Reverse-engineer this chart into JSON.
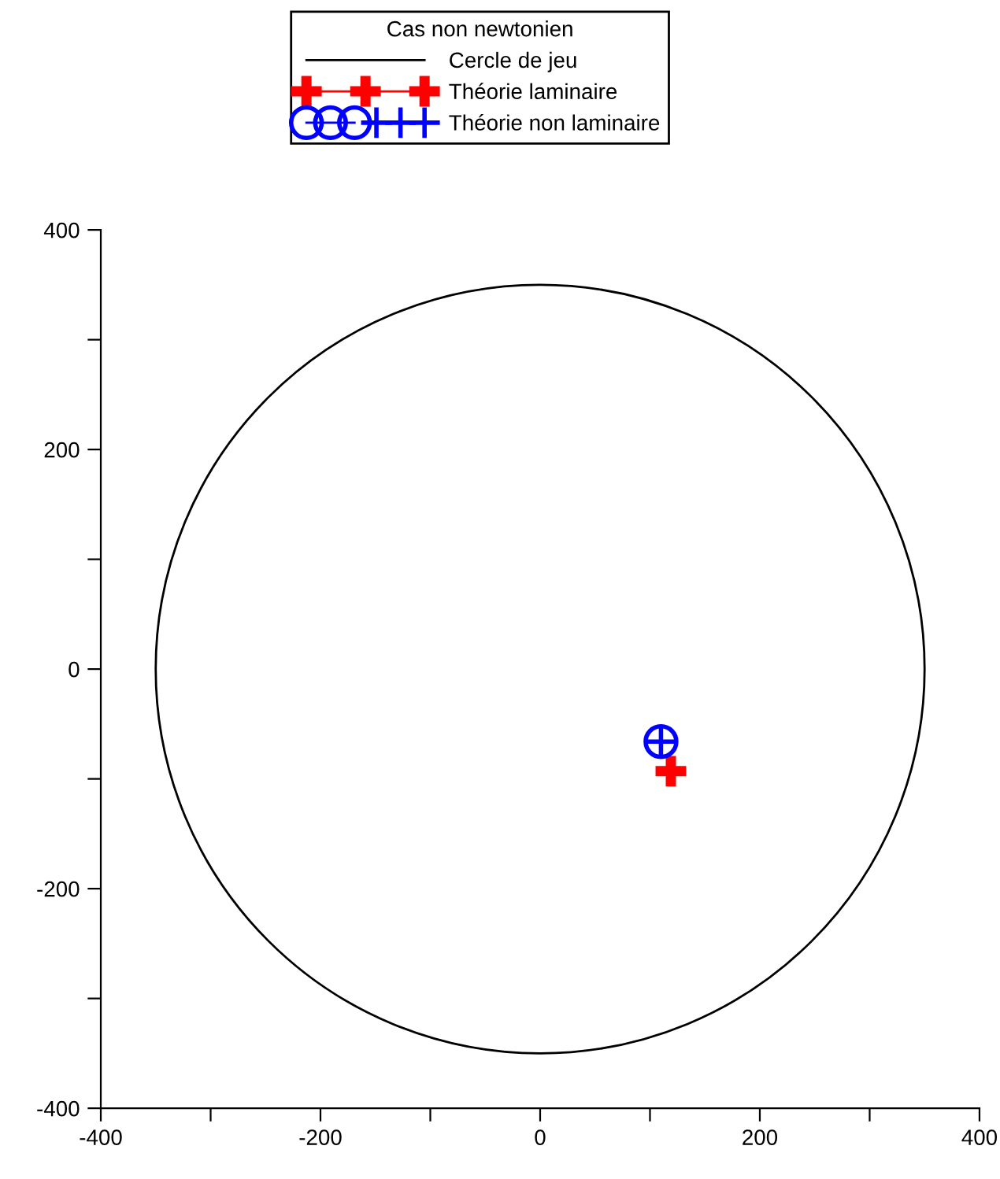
{
  "chart_data": {
    "type": "line",
    "legend_title": "Cas non newtonien",
    "legend": "top",
    "grid": false,
    "xlim": [
      -400,
      400
    ],
    "ylim": [
      -400,
      400
    ],
    "xticks": [
      -400,
      {
        "value": -300,
        "label": null
      },
      -200,
      {
        "value": -100,
        "label": null
      },
      0,
      {
        "value": 100,
        "label": null
      },
      200,
      {
        "value": 300,
        "label": null
      },
      400
    ],
    "yticks": [
      -400,
      {
        "value": -300,
        "label": null
      },
      -200,
      {
        "value": -100,
        "label": null
      },
      0,
      {
        "value": 100,
        "label": null
      },
      200,
      {
        "value": 300,
        "label": null
      },
      400
    ],
    "annotations": [
      "Cercle de jeu"
    ],
    "series": [
      {
        "name": "Théorie laminaire",
        "color": "#ff0000",
        "marker": "cross",
        "line_style": "solid",
        "x": [
          119
        ],
        "values": [
          -93
        ]
      },
      {
        "name": "Théorie non laminaire",
        "color": "#0000ff",
        "marker": "circle",
        "line_style": "solid",
        "x": [
          110
        ],
        "values": [
          -66
        ]
      }
    ]
  }
}
